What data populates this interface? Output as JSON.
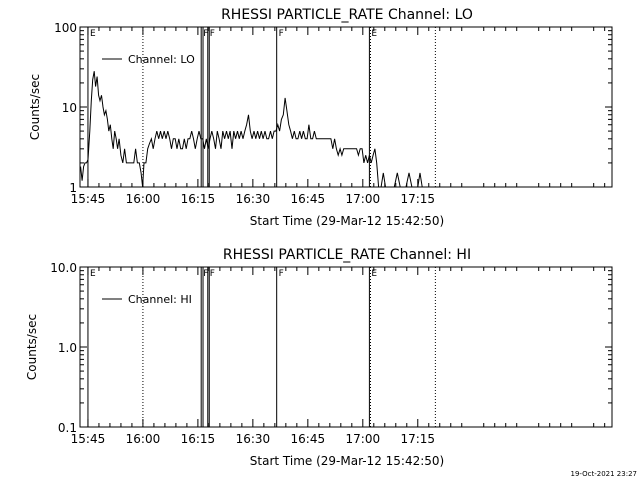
{
  "footer_timestamp": "19-Oct-2021 23:27",
  "chart_data": [
    {
      "type": "line",
      "title": "RHESSI PARTICLE_RATE Channel: LO",
      "xlabel": "Start Time (29-Mar-12 15:42:50)",
      "ylabel": "Counts/sec",
      "yscale": "log",
      "ylim": [
        1,
        100
      ],
      "yticks": [
        {
          "value": 1,
          "label": "1"
        },
        {
          "value": 10,
          "label": "10"
        },
        {
          "value": 100,
          "label": "100"
        }
      ],
      "xlim_minutes": [
        942.83,
        1088.0
      ],
      "xticks": [
        {
          "value": 945,
          "label": "15:45"
        },
        {
          "value": 960,
          "label": "16:00"
        },
        {
          "value": 975,
          "label": "16:15"
        },
        {
          "value": 990,
          "label": "16:30"
        },
        {
          "value": 1005,
          "label": "16:45"
        },
        {
          "value": 1020,
          "label": "17:00"
        },
        {
          "value": 1035,
          "label": "17:15"
        }
      ],
      "legend": {
        "label": "Channel: LO",
        "position": "top-left"
      },
      "series": [
        {
          "name": "Channel: LO",
          "points": [
            [
              943.0,
              1.8
            ],
            [
              943.4,
              1.2
            ],
            [
              943.8,
              1.8
            ],
            [
              944.2,
              2.0
            ],
            [
              944.6,
              2.0
            ],
            [
              945.0,
              2.2
            ],
            [
              945.5,
              5.0
            ],
            [
              945.9,
              12.0
            ],
            [
              946.3,
              22.0
            ],
            [
              946.7,
              28.0
            ],
            [
              947.1,
              18.0
            ],
            [
              947.5,
              24.0
            ],
            [
              947.9,
              14.0
            ],
            [
              948.3,
              12.0
            ],
            [
              948.7,
              14.0
            ],
            [
              949.1,
              10.0
            ],
            [
              949.5,
              8.0
            ],
            [
              949.9,
              9.0
            ],
            [
              950.3,
              7.0
            ],
            [
              950.7,
              5.0
            ],
            [
              951.1,
              6.0
            ],
            [
              951.5,
              4.0
            ],
            [
              951.9,
              3.0
            ],
            [
              952.3,
              5.0
            ],
            [
              952.7,
              4.0
            ],
            [
              953.1,
              3.0
            ],
            [
              953.5,
              4.0
            ],
            [
              954.0,
              2.5
            ],
            [
              954.5,
              2.0
            ],
            [
              955.0,
              3.0
            ],
            [
              955.5,
              2.0
            ],
            [
              956.0,
              2.0
            ],
            [
              956.5,
              2.0
            ],
            [
              957.0,
              2.0
            ],
            [
              957.5,
              2.0
            ],
            [
              958.0,
              3.0
            ],
            [
              958.5,
              2.0
            ],
            [
              959.0,
              2.0
            ],
            [
              959.5,
              1.5
            ],
            [
              959.9,
              1.0
            ],
            [
              960.3,
              2.0
            ],
            [
              960.8,
              2.0
            ],
            [
              961.3,
              3.0
            ],
            [
              961.8,
              3.5
            ],
            [
              962.3,
              4.0
            ],
            [
              962.8,
              3.0
            ],
            [
              963.3,
              4.0
            ],
            [
              963.8,
              5.0
            ],
            [
              964.3,
              4.0
            ],
            [
              964.8,
              5.0
            ],
            [
              965.3,
              4.0
            ],
            [
              965.8,
              5.0
            ],
            [
              966.3,
              4.0
            ],
            [
              966.8,
              5.0
            ],
            [
              967.3,
              4.0
            ],
            [
              967.8,
              3.0
            ],
            [
              968.3,
              4.0
            ],
            [
              968.8,
              4.0
            ],
            [
              969.3,
              3.0
            ],
            [
              969.8,
              4.0
            ],
            [
              970.3,
              3.0
            ],
            [
              970.8,
              3.0
            ],
            [
              971.3,
              4.0
            ],
            [
              971.8,
              3.0
            ],
            [
              972.3,
              4.0
            ],
            [
              972.8,
              4.0
            ],
            [
              973.3,
              5.0
            ],
            [
              973.8,
              4.0
            ],
            [
              974.3,
              3.0
            ],
            [
              974.8,
              4.0
            ],
            [
              975.3,
              5.0
            ],
            [
              975.8,
              4.0
            ],
            [
              976.3,
              4.0
            ],
            [
              976.8,
              3.0
            ],
            [
              977.3,
              4.0
            ],
            [
              977.8,
              3.0
            ],
            [
              978.3,
              4.0
            ],
            [
              978.8,
              5.0
            ],
            [
              979.3,
              4.0
            ],
            [
              979.8,
              3.0
            ],
            [
              980.3,
              5.0
            ],
            [
              980.8,
              4.0
            ],
            [
              981.3,
              3.0
            ],
            [
              981.8,
              5.0
            ],
            [
              982.3,
              4.0
            ],
            [
              982.8,
              5.0
            ],
            [
              983.3,
              4.0
            ],
            [
              983.8,
              5.0
            ],
            [
              984.3,
              3.0
            ],
            [
              984.8,
              5.0
            ],
            [
              985.3,
              4.0
            ],
            [
              985.8,
              5.0
            ],
            [
              986.3,
              4.0
            ],
            [
              986.8,
              5.0
            ],
            [
              987.3,
              4.0
            ],
            [
              987.8,
              5.0
            ],
            [
              988.3,
              6.0
            ],
            [
              988.8,
              8.0
            ],
            [
              989.3,
              5.0
            ],
            [
              989.8,
              4.0
            ],
            [
              990.3,
              5.0
            ],
            [
              990.8,
              4.0
            ],
            [
              991.3,
              5.0
            ],
            [
              991.8,
              4.0
            ],
            [
              992.3,
              5.0
            ],
            [
              992.8,
              4.0
            ],
            [
              993.3,
              5.0
            ],
            [
              993.8,
              4.0
            ],
            [
              994.3,
              4.0
            ],
            [
              994.8,
              5.0
            ],
            [
              995.3,
              4.0
            ],
            [
              995.8,
              5.0
            ],
            [
              996.3,
              5.0
            ],
            [
              996.8,
              6.0
            ],
            [
              997.3,
              5.0
            ],
            [
              997.8,
              7.0
            ],
            [
              998.3,
              8.0
            ],
            [
              998.8,
              13.0
            ],
            [
              999.3,
              9.0
            ],
            [
              999.8,
              6.0
            ],
            [
              1000.3,
              5.0
            ],
            [
              1000.8,
              4.0
            ],
            [
              1001.3,
              5.0
            ],
            [
              1001.8,
              4.0
            ],
            [
              1002.3,
              4.0
            ],
            [
              1002.8,
              5.0
            ],
            [
              1003.3,
              4.0
            ],
            [
              1003.8,
              5.0
            ],
            [
              1004.3,
              4.0
            ],
            [
              1004.8,
              4.0
            ],
            [
              1005.3,
              6.0
            ],
            [
              1005.8,
              4.0
            ],
            [
              1006.3,
              4.0
            ],
            [
              1006.8,
              5.0
            ],
            [
              1007.3,
              4.0
            ],
            [
              1007.8,
              4.0
            ],
            [
              1008.3,
              4.0
            ],
            [
              1008.8,
              4.0
            ],
            [
              1009.3,
              4.0
            ],
            [
              1009.8,
              4.0
            ],
            [
              1010.3,
              4.0
            ],
            [
              1010.8,
              4.0
            ],
            [
              1011.3,
              4.0
            ],
            [
              1011.8,
              3.0
            ],
            [
              1012.3,
              4.0
            ],
            [
              1012.8,
              3.0
            ],
            [
              1013.3,
              2.5
            ],
            [
              1013.8,
              3.0
            ],
            [
              1014.3,
              2.5
            ],
            [
              1014.8,
              3.0
            ],
            [
              1015.3,
              3.0
            ],
            [
              1015.8,
              3.0
            ],
            [
              1016.3,
              3.0
            ],
            [
              1016.8,
              3.0
            ],
            [
              1017.3,
              3.0
            ],
            [
              1017.8,
              3.0
            ],
            [
              1018.3,
              3.0
            ],
            [
              1018.8,
              2.5
            ],
            [
              1019.3,
              3.0
            ],
            [
              1019.8,
              3.0
            ],
            [
              1020.3,
              2.0
            ],
            [
              1020.8,
              2.5
            ],
            [
              1021.3,
              2.0
            ],
            [
              1021.8,
              2.5
            ],
            [
              1022.3,
              2.0
            ],
            [
              1022.8,
              2.5
            ],
            [
              1023.3,
              3.0
            ],
            [
              1023.8,
              2.0
            ],
            [
              1024.3,
              1.0
            ],
            [
              1025.0,
              1.0
            ],
            [
              1025.6,
              1.5
            ],
            [
              1026.2,
              1.0
            ],
            [
              1027.0,
              1.0
            ],
            [
              1027.8,
              1.0
            ],
            [
              1028.6,
              1.0
            ],
            [
              1029.4,
              1.5
            ],
            [
              1030.2,
              1.0
            ],
            [
              1031.0,
              1.0
            ],
            [
              1031.8,
              1.0
            ],
            [
              1032.6,
              1.5
            ],
            [
              1033.4,
              1.0
            ],
            [
              1034.2,
              1.0
            ],
            [
              1035.0,
              1.0
            ],
            [
              1035.6,
              1.5
            ],
            [
              1036.2,
              1.0
            ],
            [
              1037.0,
              1.0
            ],
            [
              1037.8,
              1.0
            ],
            [
              1038.6,
              1.0
            ],
            [
              1039.4,
              1.0
            ],
            [
              1040.2,
              1.0
            ],
            [
              1041.0,
              1.0
            ],
            [
              1041.8,
              1.0
            ],
            [
              1042.6,
              1.0
            ],
            [
              1043.4,
              1.0
            ],
            [
              1044.2,
              1.0
            ],
            [
              1045.0,
              1.0
            ],
            [
              1045.8,
              1.0
            ],
            [
              1046.6,
              1.0
            ],
            [
              1047.4,
              1.0
            ],
            [
              1048.2,
              1.0
            ],
            [
              1049.0,
              1.0
            ],
            [
              1049.8,
              1.0
            ],
            [
              1050.6,
              1.0
            ],
            [
              1051.4,
              1.0
            ],
            [
              1052.2,
              1.0
            ],
            [
              1053.0,
              1.0
            ],
            [
              1053.8,
              1.0
            ],
            [
              1054.6,
              1.0
            ],
            [
              1055.4,
              1.0
            ],
            [
              1056.2,
              1.0
            ]
          ]
        }
      ],
      "markers": [
        {
          "x": 945.0,
          "style": "solid",
          "label": "E"
        },
        {
          "x": 960.0,
          "style": "dotted",
          "label": ""
        },
        {
          "x": 975.9,
          "style": "solid",
          "label": "F"
        },
        {
          "x": 976.4,
          "style": "solid",
          "label": ""
        },
        {
          "x": 977.7,
          "style": "solid",
          "label": "F"
        },
        {
          "x": 978.1,
          "style": "solid",
          "label": ""
        },
        {
          "x": 996.5,
          "style": "solid",
          "label": "F"
        },
        {
          "x": 1021.8,
          "style": "solid",
          "label": "E"
        },
        {
          "x": 1022.1,
          "style": "dotted",
          "label": ""
        },
        {
          "x": 1039.8,
          "style": "dotted",
          "label": ""
        }
      ]
    },
    {
      "type": "line",
      "title": "RHESSI PARTICLE_RATE Channel: HI",
      "xlabel": "Start Time (29-Mar-12 15:42:50)",
      "ylabel": "Counts/sec",
      "yscale": "log",
      "ylim": [
        0.1,
        10
      ],
      "yticks": [
        {
          "value": 0.1,
          "label": "0.1"
        },
        {
          "value": 1,
          "label": "1.0"
        },
        {
          "value": 10,
          "label": "10.0"
        }
      ],
      "xlim_minutes": [
        942.83,
        1088.0
      ],
      "xticks": [
        {
          "value": 945,
          "label": "15:45"
        },
        {
          "value": 960,
          "label": "16:00"
        },
        {
          "value": 975,
          "label": "16:15"
        },
        {
          "value": 990,
          "label": "16:30"
        },
        {
          "value": 1005,
          "label": "16:45"
        },
        {
          "value": 1020,
          "label": "17:00"
        },
        {
          "value": 1035,
          "label": "17:15"
        }
      ],
      "legend": {
        "label": "Channel: HI",
        "position": "top-left"
      },
      "series": [
        {
          "name": "Channel: HI",
          "points": []
        }
      ],
      "markers": [
        {
          "x": 945.0,
          "style": "solid",
          "label": "E"
        },
        {
          "x": 960.0,
          "style": "dotted",
          "label": ""
        },
        {
          "x": 975.9,
          "style": "solid",
          "label": "F"
        },
        {
          "x": 976.4,
          "style": "solid",
          "label": ""
        },
        {
          "x": 977.7,
          "style": "solid",
          "label": "F"
        },
        {
          "x": 978.1,
          "style": "solid",
          "label": ""
        },
        {
          "x": 996.5,
          "style": "solid",
          "label": "F"
        },
        {
          "x": 1021.8,
          "style": "solid",
          "label": "E"
        },
        {
          "x": 1022.1,
          "style": "dotted",
          "label": ""
        },
        {
          "x": 1039.8,
          "style": "dotted",
          "label": ""
        }
      ]
    }
  ]
}
